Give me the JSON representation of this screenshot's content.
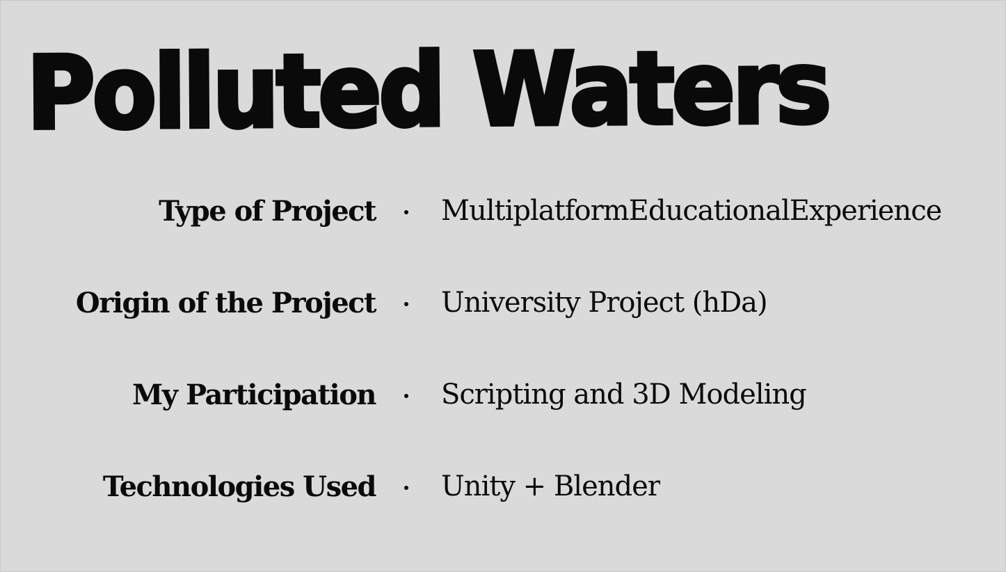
{
  "title": "Polluted Waters",
  "details": [
    {
      "label": "Type of Project",
      "value": "MultiplatformEducationalExperience"
    },
    {
      "label": "Origin of the Project",
      "value": "University Project (hDa)"
    },
    {
      "label": "My Participation",
      "value": "Scripting and 3D Modeling"
    },
    {
      "label": "Technologies Used",
      "value": "Unity + Blender"
    }
  ]
}
